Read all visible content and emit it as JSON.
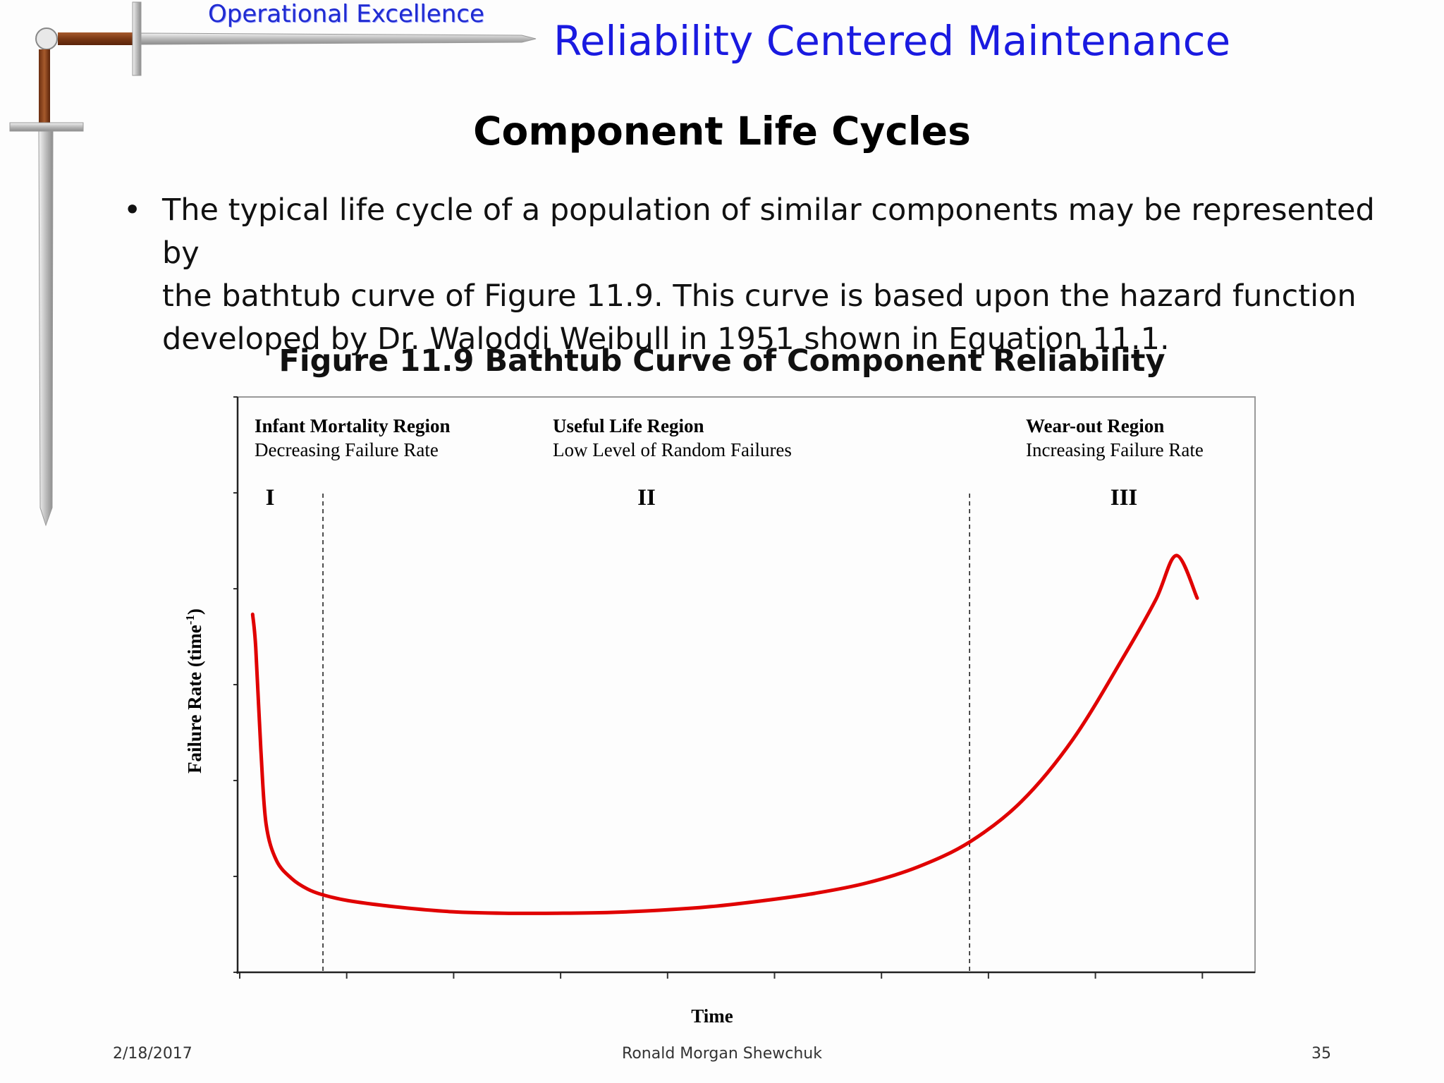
{
  "header": {
    "brand": "Operational Excellence",
    "title": "Reliability Centered Maintenance"
  },
  "slide": {
    "title": "Component Life Cycles",
    "bullets": [
      {
        "lines": [
          "The typical life cycle of a population of similar components may be represented by",
          "the bathtub curve of Figure 11.9.  This curve is based upon the hazard function",
          "developed by Dr. Waloddi Weibull in 1951 shown in Equation 11.1."
        ]
      }
    ],
    "figure_caption": "Figure 11.9  Bathtub Curve of Component Reliability"
  },
  "chart_data": {
    "type": "line",
    "title": "",
    "xlabel": "Time",
    "ylabel": "Failure  Rate (time",
    "ylabel_superscript": "-1",
    "ylabel_close": ")",
    "regions": [
      {
        "numeral": "I",
        "name": "Infant  Mortality Region",
        "description": "Decreasing  Failure  Rate"
      },
      {
        "numeral": "II",
        "name": "Useful Life Region",
        "description": "Low  Level  of Random  Failures"
      },
      {
        "numeral": "III",
        "name": "Wear-out  Region",
        "description": "Increasing  Failure  Rate"
      }
    ],
    "region_boundaries": [
      0.75,
      7.0
    ],
    "xlim": [
      0,
      9.5
    ],
    "ylim": [
      0,
      6
    ],
    "grid": false,
    "series": [
      {
        "color": "#e00000",
        "x": [
          0.07,
          0.1,
          0.15,
          0.2,
          0.3,
          0.45,
          0.6,
          0.75,
          1.0,
          1.5,
          2.0,
          2.5,
          3.0,
          3.5,
          4.0,
          4.5,
          5.0,
          5.5,
          6.0,
          6.5,
          7.0,
          7.5,
          8.0,
          8.5,
          8.8,
          9.0,
          9.2
        ],
        "y": [
          4.5,
          4.05,
          2.65,
          1.65,
          1.15,
          0.9,
          0.76,
          0.68,
          0.6,
          0.51,
          0.45,
          0.43,
          0.43,
          0.44,
          0.47,
          0.52,
          0.6,
          0.7,
          0.84,
          1.06,
          1.4,
          1.95,
          2.8,
          3.95,
          4.7,
          5.3,
          4.72
        ]
      }
    ]
  },
  "footer": {
    "date": "2/18/2017",
    "author": "Ronald Morgan Shewchuk",
    "page": "35"
  },
  "colors": {
    "brand": "#1f2bd1",
    "title": "#1a1ae0",
    "curve": "#e00000"
  }
}
